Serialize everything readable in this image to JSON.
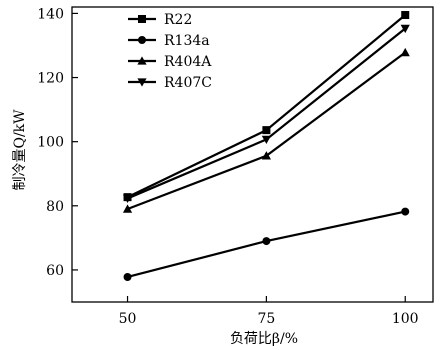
{
  "chart_data": {
    "type": "line",
    "xlabel": "负荷比β/%",
    "ylabel": "制冷量Q/kW",
    "x": [
      50,
      75,
      100
    ],
    "xticks": [
      "50",
      "75",
      "100"
    ],
    "yticks": [
      "60",
      "80",
      "100",
      "120",
      "140"
    ],
    "xlim": [
      40,
      105
    ],
    "ylim": [
      50,
      142
    ],
    "grid": false,
    "legend_position": "top-left",
    "series": [
      {
        "name": "R22",
        "marker": "square",
        "values": [
          82.7,
          103.6,
          139.5
        ]
      },
      {
        "name": "R134a",
        "marker": "circle",
        "values": [
          57.8,
          69,
          78.2
        ]
      },
      {
        "name": "R404A",
        "marker": "triangle-up",
        "values": [
          79,
          95.6,
          127.8
        ]
      },
      {
        "name": "R407C",
        "marker": "triangle-down",
        "values": [
          82.3,
          100.7,
          135.3
        ]
      }
    ]
  }
}
